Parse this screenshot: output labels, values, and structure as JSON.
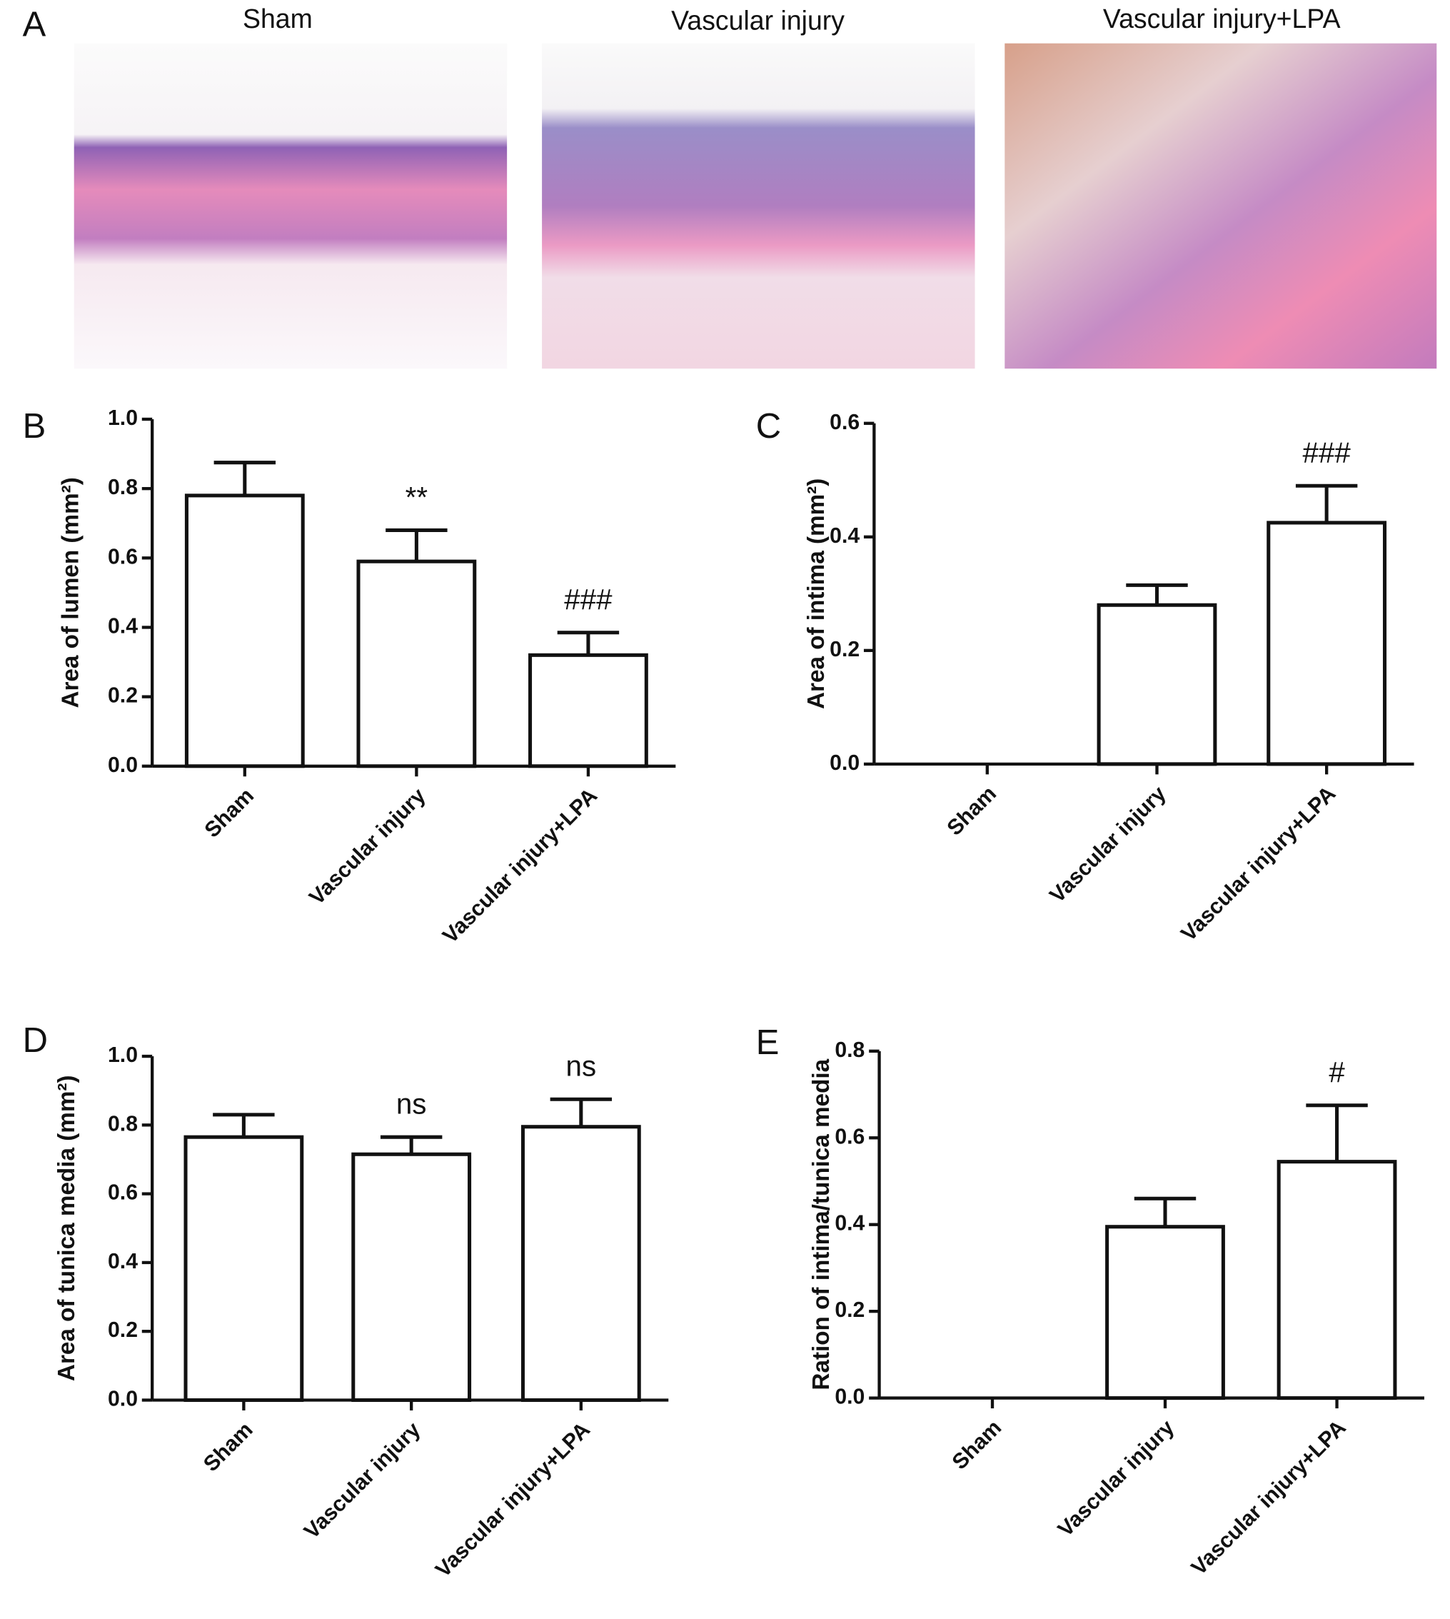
{
  "panel_a": {
    "label": "A",
    "images": [
      {
        "title": "Sham"
      },
      {
        "title": "Vascular injury"
      },
      {
        "title": "Vascular injury+LPA"
      }
    ]
  },
  "chart_data": [
    {
      "type": "bar",
      "panel_label": "B",
      "y_label": "Area of lumen (mm²)",
      "color": "#ffffff",
      "categories": [
        "Sham",
        "Vascular injury",
        "Vascular injury+LPA"
      ],
      "values": [
        0.78,
        0.59,
        0.32
      ],
      "errors": [
        0.095,
        0.09,
        0.065
      ],
      "annotations": [
        null,
        "**",
        "###"
      ],
      "ylim": [
        0,
        1.0
      ],
      "yticks": [
        {
          "value": 0,
          "label": "0.0"
        },
        0.2,
        0.4,
        0.6,
        0.8,
        {
          "value": 1.0,
          "label": "1.0"
        }
      ]
    },
    {
      "type": "bar",
      "panel_label": "C",
      "y_label": "Area of intima (mm²)",
      "color": "#ffffff",
      "categories": [
        "Sham",
        "Vascular injury",
        "Vascular injury+LPA"
      ],
      "values": [
        0,
        0.28,
        0.425
      ],
      "errors": [
        0,
        0.035,
        0.065
      ],
      "annotations": [
        null,
        null,
        "###"
      ],
      "ylim": [
        0,
        0.6
      ],
      "yticks": [
        {
          "value": 0,
          "label": "0.0"
        },
        0.2,
        0.4,
        0.6
      ]
    },
    {
      "type": "bar",
      "panel_label": "D",
      "y_label": "Area of tunica media (mm²)",
      "color": "#ffffff",
      "categories": [
        "Sham",
        "Vascular injury",
        "Vascular injury+LPA"
      ],
      "values": [
        0.765,
        0.715,
        0.795
      ],
      "errors": [
        0.065,
        0.05,
        0.08
      ],
      "annotations": [
        null,
        "ns",
        "ns"
      ],
      "ylim": [
        0,
        1.0
      ],
      "yticks": [
        {
          "value": 0,
          "label": "0.0"
        },
        0.2,
        0.4,
        0.6,
        0.8,
        {
          "value": 1.0,
          "label": "1.0"
        }
      ]
    },
    {
      "type": "bar",
      "panel_label": "E",
      "y_label": "Ration of intima/tunica media",
      "color": "#ffffff",
      "categories": [
        "Sham",
        "Vascular injury",
        "Vascular injury+LPA"
      ],
      "values": [
        0,
        0.395,
        0.545
      ],
      "errors": [
        0,
        0.065,
        0.13
      ],
      "annotations": [
        null,
        null,
        "#"
      ],
      "ylim": [
        0,
        0.8
      ],
      "yticks": [
        {
          "value": 0,
          "label": "0.0"
        },
        0.2,
        0.4,
        0.6,
        0.8
      ]
    }
  ]
}
